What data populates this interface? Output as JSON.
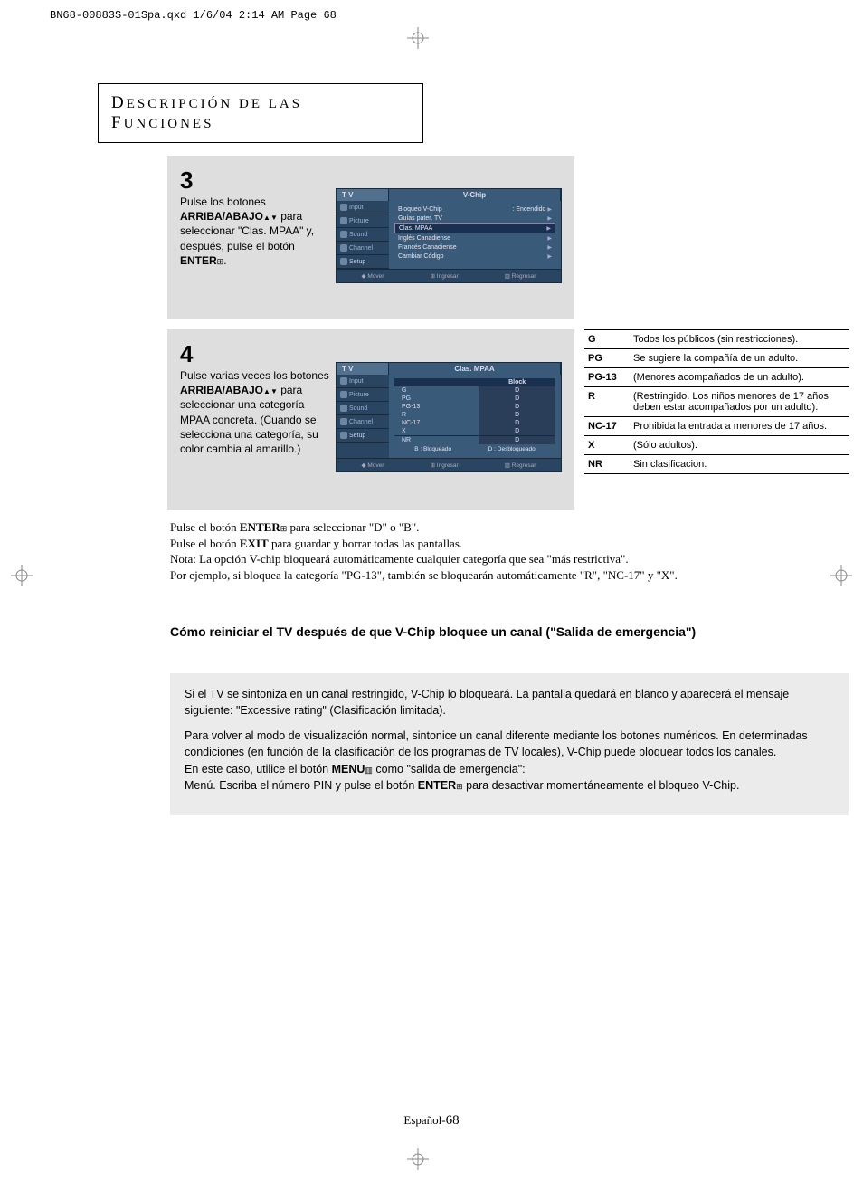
{
  "print_header": "BN68-00883S-01Spa.qxd  1/6/04 2:14 AM  Page 68",
  "section_title_parts": {
    "d": "D",
    "esc": "ESCRIPCIÓN DE LAS",
    "f": "F",
    "unc": "UNCIONES"
  },
  "step3": {
    "num": "3",
    "text_pre": "Pulse los botones ",
    "bold1": "ARRIBA/ABAJO",
    "text_mid": " para seleccionar \"Clas. MPAA\" y, después, pulse el botón ",
    "bold2": "ENTER",
    "text_end": "."
  },
  "tv_menu1": {
    "tab_main": "T V",
    "tab_title": "V-Chip",
    "side": [
      "Input",
      "Picture",
      "Sound",
      "Channel",
      "Setup"
    ],
    "rows": [
      {
        "label": "Bloqueo V-Chip",
        "value": ": Encendido",
        "sel": false
      },
      {
        "label": "Guías pater. TV",
        "value": "",
        "sel": false
      },
      {
        "label": "Clas. MPAA",
        "value": "",
        "sel": true
      },
      {
        "label": "Inglés Canadiense",
        "value": "",
        "sel": false
      },
      {
        "label": "Francés Canadiense",
        "value": "",
        "sel": false
      },
      {
        "label": "Cambiar Código",
        "value": "",
        "sel": false
      }
    ],
    "footer": [
      "◆ Mover",
      "⊞ Ingresar",
      "▥ Regresar"
    ]
  },
  "step4": {
    "num": "4",
    "text_pre": "Pulse varias veces los botones ",
    "bold1": "ARRIBA/ABAJO",
    "text_end": " para seleccionar una categoría MPAA concreta. (Cuando se selecciona una categoría, su color cambia al amarillo.)"
  },
  "tv_menu2": {
    "tab_main": "T V",
    "tab_title": "Clas. MPAA",
    "side": [
      "Input",
      "Picture",
      "Sound",
      "Channel",
      "Setup"
    ],
    "header": "Block",
    "rows": [
      {
        "r": "G",
        "v": "D"
      },
      {
        "r": "PG",
        "v": "D"
      },
      {
        "r": "PG-13",
        "v": "D"
      },
      {
        "r": "R",
        "v": "D"
      },
      {
        "r": "NC-17",
        "v": "D"
      },
      {
        "r": "X",
        "v": "D"
      }
    ],
    "nr_row": {
      "r": "NR",
      "v": "D"
    },
    "legend": [
      "B : Bloqueado",
      "D : Desbloqueado"
    ],
    "footer": [
      "◆ Mover",
      "⊞ Ingresar",
      "▥ Regresar"
    ]
  },
  "ratings": [
    {
      "code": "G",
      "desc": "Todos los públicos (sin restricciones)."
    },
    {
      "code": "PG",
      "desc": "Se sugiere la compañía de un adulto."
    },
    {
      "code": "PG-13",
      "desc": "(Menores acompañados de un adulto)."
    },
    {
      "code": "R",
      "desc": "(Restringido. Los niños menores de 17 años deben estar acompañados por un adulto)."
    },
    {
      "code": "NC-17",
      "desc": "Prohibida la entrada a menores de 17 años."
    },
    {
      "code": "X",
      "desc": "(Sólo adultos)."
    },
    {
      "code": "NR",
      "desc": "Sin clasificacion."
    }
  ],
  "below": {
    "l1a": "Pulse el botón ",
    "l1b": "ENTER",
    "l1c": " para seleccionar \"D\" o \"B\".",
    "l2a": "Pulse el botón ",
    "l2b": "EXIT",
    "l2c": " para guardar y borrar todas las pantallas.",
    "l3": "Nota: La opción V-chip bloqueará automáticamente cualquier categoría que sea \"más restrictiva\".",
    "l4": "Por ejemplo, si bloquea la categoría \"PG-13\", también se bloquearán automáticamente \"R\", \"NC-17\" y \"X\"."
  },
  "subheading": "Cómo reiniciar el TV después de que V-Chip bloquee un canal (\"Salida de emergencia\")",
  "info": {
    "p1": "Si el TV se sintoniza en un canal restringido, V-Chip lo bloqueará. La pantalla quedará en blanco y aparecerá el mensaje siguiente: \"Excessive rating\" (Clasificación limitada).",
    "p2a": "Para volver al modo de visualización normal, sintonice un canal diferente mediante los botones numéricos. En determinadas condiciones (en función de la clasificación de los programas de TV locales), V-Chip puede bloquear todos los canales.",
    "p2b1": "En este caso, utilice el botón ",
    "p2b2": "MENU",
    "p2b3": " como \"salida de emergencia\":",
    "p2c1": "Menú. Escriba el número PIN y pulse el botón ",
    "p2c2": "ENTER",
    "p2c3": " para desactivar momentáneamente el bloqueo V-Chip."
  },
  "footer_lang": "Español-",
  "footer_page": "68"
}
